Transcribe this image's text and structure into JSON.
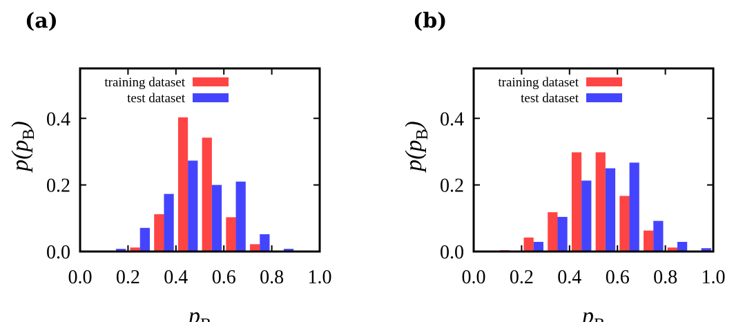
{
  "chart_data": [
    {
      "type": "bar",
      "panel_label": "(a)",
      "xlabel": "p",
      "xlabel_sub": "B",
      "ylabel": "p(p",
      "ylabel_sub": "B",
      "ylabel_close": ")",
      "xlim": [
        0.0,
        1.0
      ],
      "ylim": [
        0.0,
        0.55
      ],
      "xticks": [
        "0.0",
        "0.2",
        "0.4",
        "0.6",
        "0.8",
        "1.0"
      ],
      "yticks": [
        "0.0",
        "0.2",
        "0.4"
      ],
      "grid": false,
      "legend_position": "top-left",
      "categories": [
        0.05,
        0.15,
        0.25,
        0.35,
        0.45,
        0.55,
        0.65,
        0.75,
        0.85,
        0.95
      ],
      "series": [
        {
          "name": "training dataset",
          "color": "#ff4444",
          "values": [
            0.0,
            0.0,
            0.012,
            0.112,
            0.403,
            0.342,
            0.103,
            0.022,
            0.0,
            0.0
          ]
        },
        {
          "name": "test dataset",
          "color": "#4444ff",
          "values": [
            0.0,
            0.008,
            0.071,
            0.173,
            0.273,
            0.2,
            0.21,
            0.052,
            0.008,
            0.0
          ]
        }
      ]
    },
    {
      "type": "bar",
      "panel_label": "(b)",
      "xlabel": "p",
      "xlabel_sub": "B",
      "ylabel": "p(p",
      "ylabel_sub": "B",
      "ylabel_close": ")",
      "xlim": [
        0.0,
        1.0
      ],
      "ylim": [
        0.0,
        0.55
      ],
      "xticks": [
        "0.0",
        "0.2",
        "0.4",
        "0.6",
        "0.8",
        "1.0"
      ],
      "yticks": [
        "0.0",
        "0.2",
        "0.4"
      ],
      "grid": false,
      "legend_position": "top-left",
      "categories": [
        0.05,
        0.15,
        0.25,
        0.35,
        0.45,
        0.55,
        0.65,
        0.75,
        0.85,
        0.95
      ],
      "series": [
        {
          "name": "training dataset",
          "color": "#ff4444",
          "values": [
            0.0,
            0.004,
            0.042,
            0.118,
            0.298,
            0.298,
            0.167,
            0.063,
            0.012,
            0.0
          ]
        },
        {
          "name": "test dataset",
          "color": "#4444ff",
          "values": [
            0.0,
            0.0,
            0.029,
            0.104,
            0.213,
            0.25,
            0.267,
            0.092,
            0.029,
            0.01
          ]
        }
      ]
    }
  ]
}
